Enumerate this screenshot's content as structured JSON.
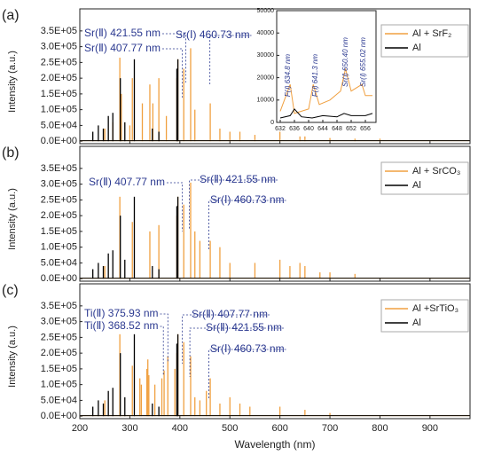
{
  "chart_data": [
    {
      "type": "stem",
      "panel_label": "(a)",
      "ylabel": "Intensity (a.u.)",
      "xlim": [
        200,
        980
      ],
      "ylim": [
        -8000,
        420000
      ],
      "yticks": [
        {
          "value": 0,
          "label": "0.0E+00"
        },
        {
          "value": 50000,
          "label": "5.0E+04"
        },
        {
          "value": 100000,
          "label": "1.0E+05"
        },
        {
          "value": 150000,
          "label": "1.5E+05"
        },
        {
          "value": 200000,
          "label": "2.0E+05"
        },
        {
          "value": 250000,
          "label": "2.5E+05"
        },
        {
          "value": 300000,
          "label": "3.0E+05"
        },
        {
          "value": 350000,
          "label": "3.5E+05"
        }
      ],
      "legend": "upper right",
      "series": [
        {
          "name": "Al + SrF₂",
          "color": "#f0a040",
          "x": [
            250,
            266,
            280,
            283,
            300,
            305,
            325,
            340,
            346,
            358,
            373,
            394,
            396,
            407.77,
            421.55,
            430,
            460.73,
            480,
            500,
            520,
            550,
            600,
            640,
            650,
            700,
            750,
            800
          ],
          "values": [
            40000,
            60000,
            265000,
            150000,
            50000,
            200000,
            120000,
            180000,
            120000,
            200000,
            80000,
            200000,
            260000,
            230000,
            295000,
            100000,
            120000,
            40000,
            30000,
            30000,
            20000,
            30000,
            15000,
            15000,
            10000,
            8000,
            8000
          ]
        },
        {
          "name": "Al",
          "color": "#000000",
          "x": [
            226,
            237,
            247,
            257,
            266,
            281,
            290,
            309,
            345,
            358,
            394,
            396
          ],
          "values": [
            30000,
            50000,
            40000,
            80000,
            90000,
            200000,
            60000,
            260000,
            40000,
            30000,
            230000,
            260000
          ]
        }
      ],
      "annotations": [
        "Sr(Ⅱ) 421.55 nm",
        "Sr(Ⅰ) 460.73 nm",
        "Sr(Ⅱ) 407.77 nm"
      ]
    },
    {
      "type": "line",
      "xlim": [
        631,
        659
      ],
      "ylim": [
        0,
        50000
      ],
      "xticks": [
        632,
        636,
        640,
        644,
        648,
        652,
        656
      ],
      "yticks": [
        0,
        10000,
        20000,
        30000,
        40000,
        50000
      ],
      "series": [
        {
          "name": "Al + SrF₂",
          "color": "#f0a040",
          "x": [
            632,
            634.8,
            636,
            640,
            641.3,
            643,
            646,
            649,
            650.4,
            652,
            655.02,
            656,
            658
          ],
          "values": [
            5000,
            17000,
            4000,
            6000,
            17000,
            8000,
            10000,
            14000,
            24000,
            14000,
            17000,
            12000,
            12000
          ]
        },
        {
          "name": "Al",
          "color": "#000000",
          "x": [
            632,
            634.8,
            636,
            638,
            641,
            644,
            648,
            650,
            652,
            656,
            658
          ],
          "values": [
            2000,
            3000,
            6000,
            2500,
            2000,
            3000,
            2500,
            4000,
            3000,
            3000,
            4000
          ]
        }
      ],
      "annotations": [
        "F(Ⅰ) 634.8 nm",
        "F(Ⅰ) 641.3 nm",
        "Sr(Ⅰ) 650.40 nm",
        "Sr(Ⅰ) 655.02 nm"
      ]
    },
    {
      "type": "stem",
      "panel_label": "(b)",
      "ylabel": "Intensity (a.u.)",
      "xlim": [
        200,
        980
      ],
      "ylim": [
        -8000,
        420000
      ],
      "yticks": [
        {
          "value": 0,
          "label": "0.0E+00"
        },
        {
          "value": 50000,
          "label": "5.0E+04"
        },
        {
          "value": 100000,
          "label": "1.0E+05"
        },
        {
          "value": 150000,
          "label": "1.5E+05"
        },
        {
          "value": 200000,
          "label": "2.0E+05"
        },
        {
          "value": 250000,
          "label": "2.5E+05"
        },
        {
          "value": 300000,
          "label": "3.0E+05"
        },
        {
          "value": 350000,
          "label": "3.5E+05"
        }
      ],
      "legend": "upper right",
      "series": [
        {
          "name": "Al + SrCO₃",
          "color": "#f0a040",
          "x": [
            250,
            280,
            305,
            340,
            358,
            394,
            396,
            407.77,
            421.55,
            430,
            440,
            460.73,
            480,
            500,
            550,
            600,
            620,
            640,
            650,
            680,
            700,
            750
          ],
          "values": [
            40000,
            260000,
            180000,
            150000,
            170000,
            200000,
            260000,
            235000,
            305000,
            150000,
            120000,
            120000,
            100000,
            50000,
            50000,
            60000,
            40000,
            50000,
            40000,
            20000,
            20000,
            15000
          ]
        },
        {
          "name": "Al",
          "color": "#000000",
          "x": [
            226,
            237,
            247,
            257,
            266,
            281,
            290,
            309,
            345,
            358,
            394,
            396
          ],
          "values": [
            30000,
            50000,
            40000,
            80000,
            90000,
            200000,
            60000,
            260000,
            40000,
            30000,
            230000,
            260000
          ]
        }
      ],
      "annotations": [
        "Sr(Ⅱ) 407.77 nm",
        "Sr(Ⅱ) 421.55 nm",
        "Sr(Ⅰ) 460.73 nm"
      ]
    },
    {
      "type": "stem",
      "panel_label": "(c)",
      "ylabel": "Intensity (a.u.)",
      "xlabel": "Wavelength (nm)",
      "xlim": [
        200,
        980
      ],
      "ylim": [
        -8000,
        420000
      ],
      "xticks": [
        200,
        300,
        400,
        500,
        600,
        700,
        800,
        900
      ],
      "yticks": [
        {
          "value": 0,
          "label": "0.0E+00"
        },
        {
          "value": 50000,
          "label": "5.0E+04"
        },
        {
          "value": 100000,
          "label": "1.0E+05"
        },
        {
          "value": 150000,
          "label": "1.5E+05"
        },
        {
          "value": 200000,
          "label": "2.0E+05"
        },
        {
          "value": 250000,
          "label": "2.5E+05"
        },
        {
          "value": 300000,
          "label": "3.0E+05"
        },
        {
          "value": 350000,
          "label": "3.5E+05"
        }
      ],
      "legend": "upper right",
      "series": [
        {
          "name": "Al +SrTiO₃",
          "color": "#f0a040",
          "x": [
            250,
            280,
            305,
            320,
            323,
            334,
            336,
            338,
            350,
            364,
            368.52,
            375.93,
            390,
            394,
            396,
            407.77,
            421.55,
            430,
            440,
            453,
            460.73,
            480,
            500,
            520,
            540,
            600,
            650,
            700
          ],
          "values": [
            50000,
            260000,
            160000,
            120000,
            100000,
            150000,
            180000,
            130000,
            100000,
            120000,
            145000,
            190000,
            150000,
            200000,
            260000,
            235000,
            190000,
            60000,
            50000,
            80000,
            120000,
            40000,
            60000,
            40000,
            30000,
            30000,
            20000,
            10000
          ]
        },
        {
          "name": "Al",
          "color": "#000000",
          "x": [
            226,
            237,
            247,
            257,
            266,
            281,
            290,
            309,
            345,
            358,
            394,
            396
          ],
          "values": [
            30000,
            50000,
            40000,
            80000,
            90000,
            200000,
            60000,
            260000,
            40000,
            30000,
            230000,
            260000
          ]
        }
      ],
      "annotations": [
        "Ti(Ⅱ) 375.93 nm",
        "Ti(Ⅱ) 368.52 nm",
        "Sr(Ⅱ) 407.77 nm",
        "Sr(Ⅱ) 421.55 nm",
        "Sr(Ⅰ) 460.73 nm"
      ]
    }
  ]
}
